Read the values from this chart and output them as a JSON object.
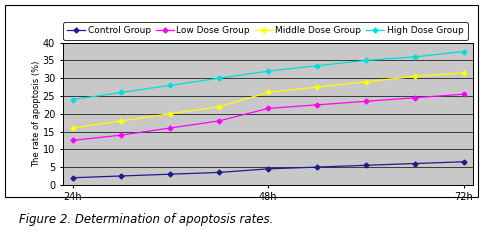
{
  "x_labels": [
    "24h",
    "48h",
    "72h"
  ],
  "x_values": [
    0,
    1,
    2
  ],
  "series": [
    {
      "name": "Control Group",
      "values": [
        2.0,
        2.5,
        3.0,
        3.5,
        4.5,
        5.0,
        5.5,
        6.0,
        6.5
      ],
      "color": "#1C1C8C",
      "marker": "D",
      "markersize": 2.5,
      "linewidth": 0.9
    },
    {
      "name": "Low Dose Group",
      "values": [
        12.5,
        14.0,
        16.0,
        18.0,
        21.5,
        22.5,
        23.5,
        24.5,
        25.5
      ],
      "color": "#FF00FF",
      "marker": "D",
      "markersize": 2.5,
      "linewidth": 0.9
    },
    {
      "name": "Middle Dose Group",
      "values": [
        16.0,
        18.0,
        20.0,
        22.0,
        26.0,
        27.5,
        29.0,
        30.5,
        31.5
      ],
      "color": "#FFFF00",
      "marker": "D",
      "markersize": 2.5,
      "linewidth": 0.9
    },
    {
      "name": "High Dose Group",
      "values": [
        24.0,
        26.0,
        28.0,
        30.0,
        32.0,
        33.5,
        35.0,
        36.0,
        37.5
      ],
      "color": "#00DDDD",
      "marker": "D",
      "markersize": 2.5,
      "linewidth": 0.9
    }
  ],
  "ylabel": "The rate of apoptosis (%)",
  "ylim": [
    0,
    40
  ],
  "yticks": [
    0,
    5,
    10,
    15,
    20,
    25,
    30,
    35,
    40
  ],
  "bg_color": "#C8C8C8",
  "legend_fontsize": 6.5,
  "axis_fontsize": 7.5,
  "tick_fontsize": 7,
  "caption": "Figure 2. Determination of apoptosis rates.",
  "caption_fontsize": 8.5
}
